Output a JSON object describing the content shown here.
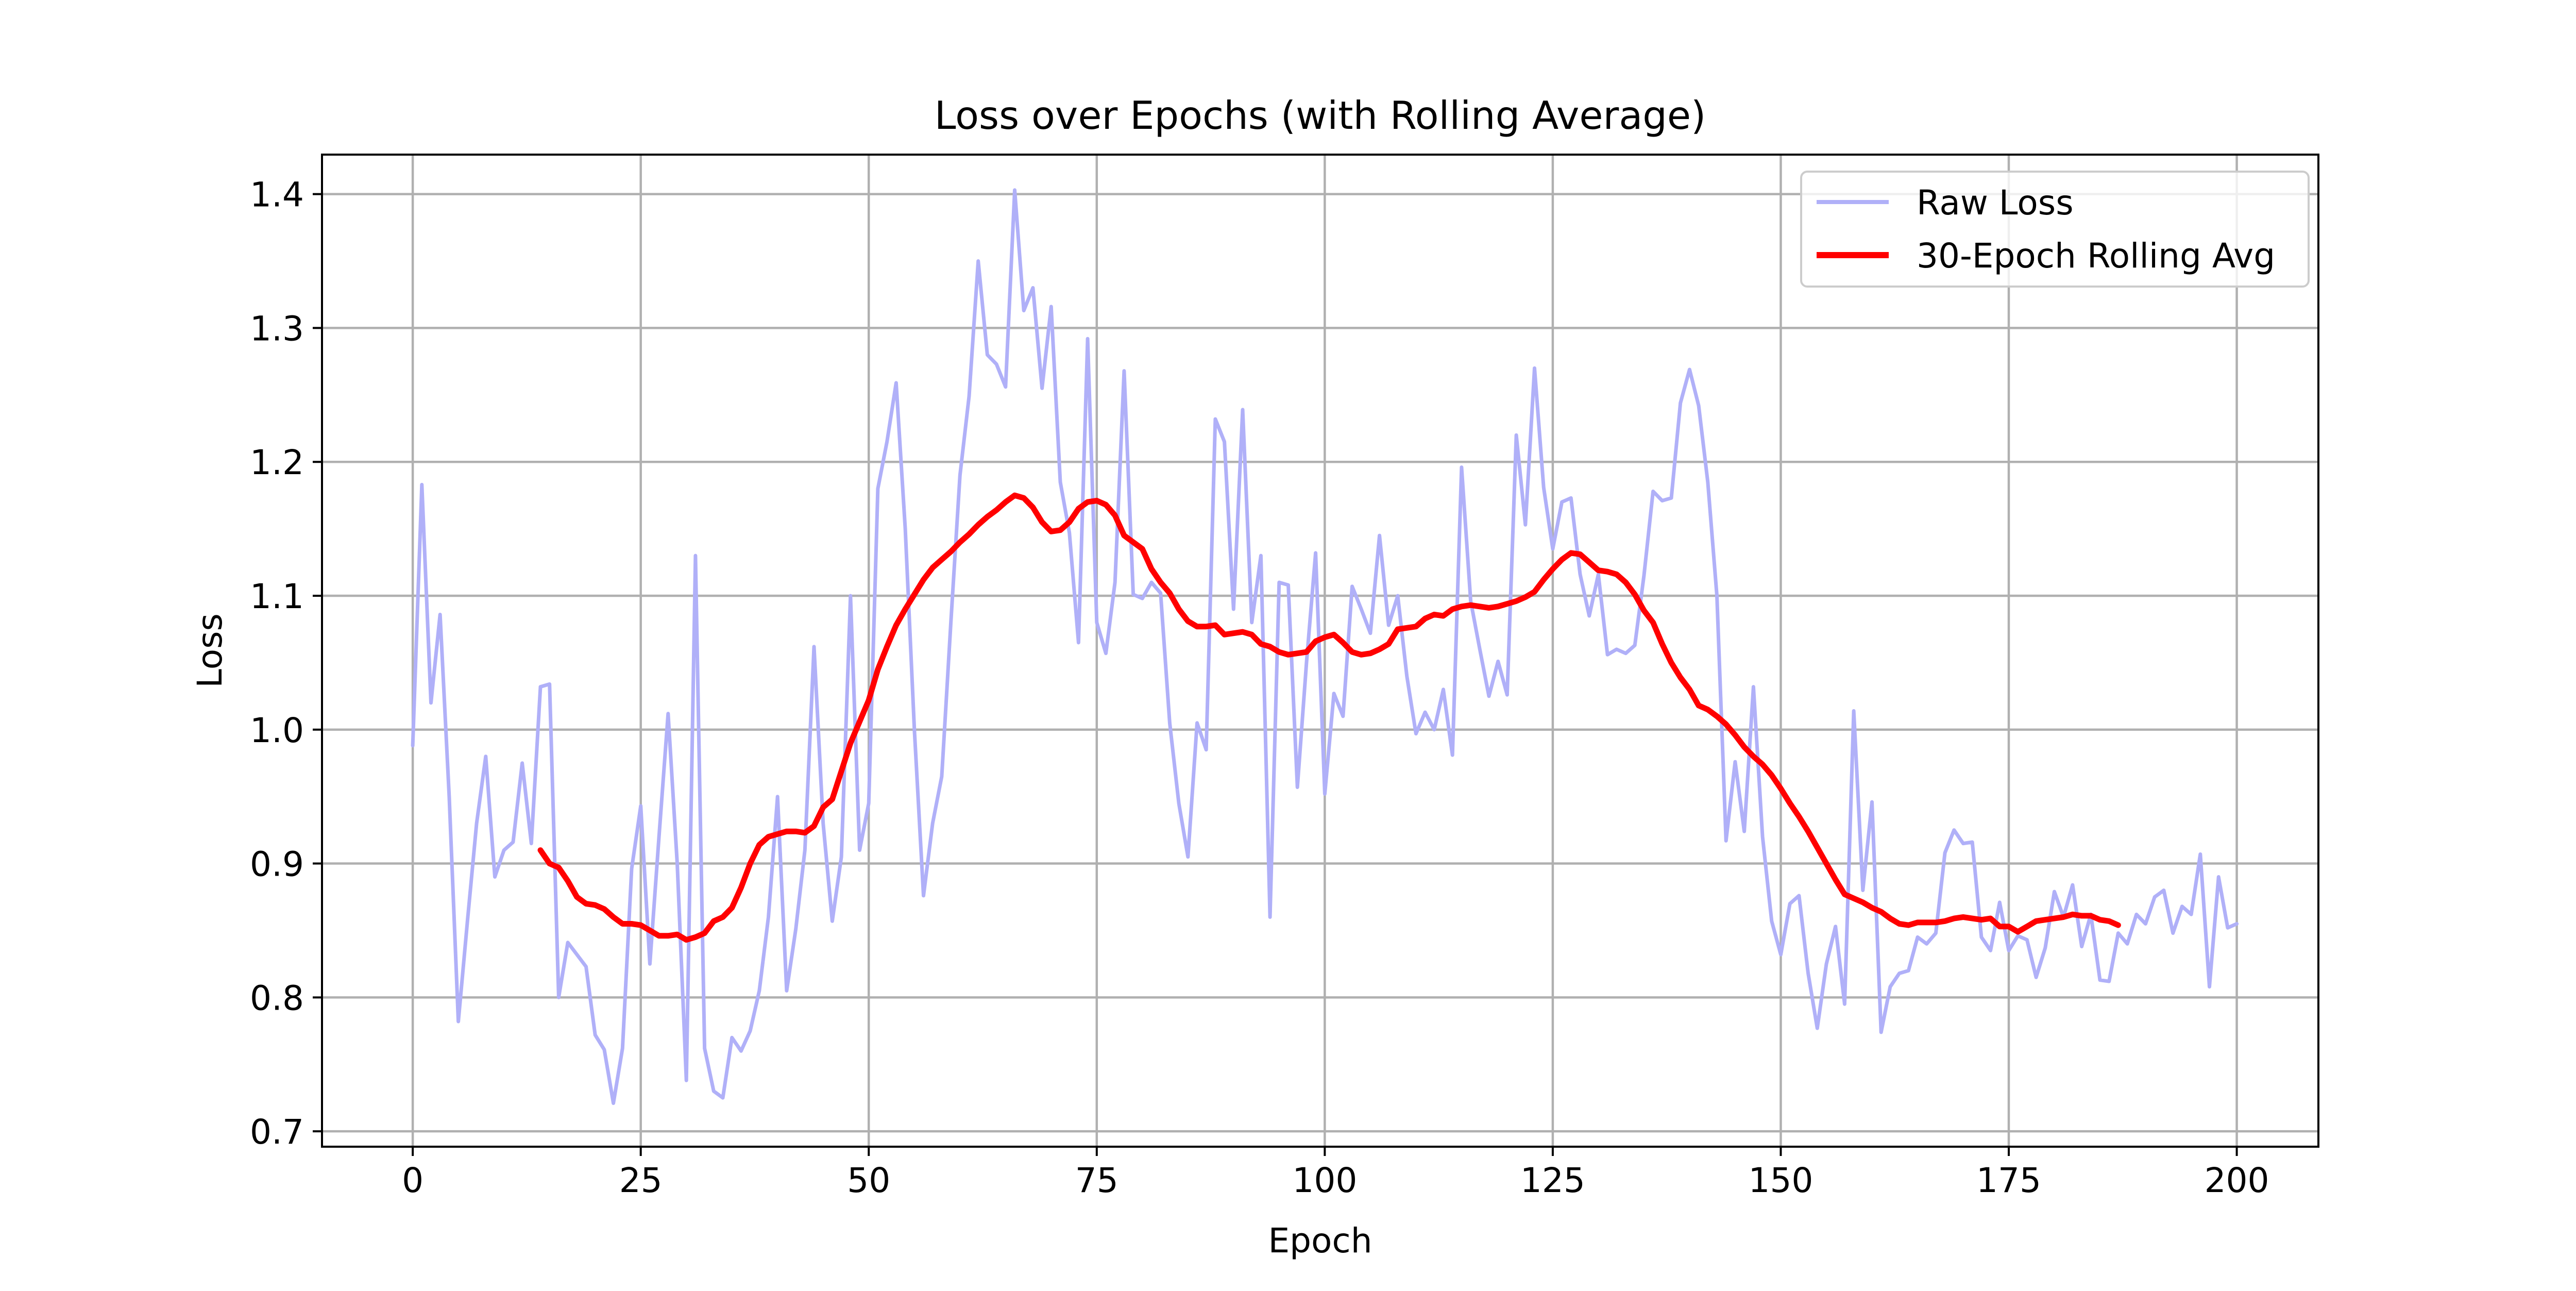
{
  "chart_data": {
    "type": "line",
    "title": "Loss over Epochs (with Rolling Average)",
    "xlabel": "Epoch",
    "ylabel": "Loss",
    "xlim": [
      -9.95,
      208.95
    ],
    "ylim": [
      0.6885,
      1.4295
    ],
    "xticks": [
      0,
      25,
      50,
      75,
      100,
      125,
      150,
      175,
      200
    ],
    "xtick_labels": [
      "0",
      "25",
      "50",
      "75",
      "100",
      "125",
      "150",
      "175",
      "200"
    ],
    "yticks": [
      0.7,
      0.8,
      0.9,
      1.0,
      1.1,
      1.2,
      1.3,
      1.4
    ],
    "ytick_labels": [
      "0.7",
      "0.8",
      "0.9",
      "1.0",
      "1.1",
      "1.2",
      "1.3",
      "1.4"
    ],
    "grid": true,
    "legend_position": "top-right",
    "series": [
      {
        "name": "Raw Loss",
        "color": "#b0b0f8",
        "x_start": 0,
        "values": [
          0.988,
          1.183,
          1.02,
          1.086,
          0.95,
          0.782,
          0.857,
          0.93,
          0.98,
          0.89,
          0.91,
          0.916,
          0.975,
          0.915,
          1.032,
          1.034,
          0.8,
          0.841,
          0.832,
          0.823,
          0.772,
          0.761,
          0.721,
          0.762,
          0.896,
          0.943,
          0.825,
          0.92,
          1.012,
          0.9,
          0.738,
          1.13,
          0.762,
          0.73,
          0.725,
          0.77,
          0.76,
          0.775,
          0.805,
          0.86,
          0.95,
          0.805,
          0.851,
          0.91,
          1.062,
          0.93,
          0.857,
          0.905,
          1.1,
          0.91,
          0.945,
          1.18,
          1.215,
          1.259,
          1.15,
          1.0,
          0.876,
          0.93,
          0.965,
          1.08,
          1.19,
          1.249,
          1.35,
          1.28,
          1.273,
          1.256,
          1.403,
          1.313,
          1.33,
          1.255,
          1.316,
          1.185,
          1.147,
          1.065,
          1.292,
          1.08,
          1.057,
          1.11,
          1.268,
          1.101,
          1.098,
          1.11,
          1.102,
          1.005,
          0.945,
          0.905,
          1.005,
          0.985,
          1.232,
          1.215,
          1.09,
          1.239,
          1.08,
          1.13,
          0.86,
          1.11,
          1.108,
          0.957,
          1.05,
          1.132,
          0.952,
          1.027,
          1.01,
          1.107,
          1.09,
          1.072,
          1.145,
          1.078,
          1.1,
          1.04,
          0.997,
          1.013,
          1.0,
          1.03,
          0.981,
          1.196,
          1.096,
          1.06,
          1.025,
          1.051,
          1.026,
          1.22,
          1.153,
          1.27,
          1.181,
          1.135,
          1.17,
          1.173,
          1.116,
          1.085,
          1.116,
          1.056,
          1.06,
          1.057,
          1.063,
          1.115,
          1.178,
          1.171,
          1.173,
          1.244,
          1.269,
          1.242,
          1.185,
          1.1,
          0.917,
          0.976,
          0.924,
          1.032,
          0.92,
          0.857,
          0.832,
          0.87,
          0.876,
          0.818,
          0.777,
          0.825,
          0.853,
          0.795,
          1.014,
          0.88,
          0.946,
          0.774,
          0.808,
          0.818,
          0.82,
          0.845,
          0.84,
          0.848,
          0.908,
          0.925,
          0.915,
          0.916,
          0.845,
          0.835,
          0.871,
          0.835,
          0.846,
          0.843,
          0.815,
          0.837,
          0.879,
          0.86,
          0.884,
          0.838,
          0.862,
          0.813,
          0.812,
          0.848,
          0.84,
          0.862,
          0.855,
          0.875,
          0.88,
          0.848,
          0.868,
          0.862,
          0.907,
          0.808,
          0.89,
          0.852,
          0.855
        ]
      },
      {
        "name": "30-Epoch Rolling Avg",
        "color": "#ff0000",
        "x_start": 14,
        "values": [
          0.91,
          0.9,
          0.897,
          0.887,
          0.875,
          0.87,
          0.869,
          0.866,
          0.86,
          0.855,
          0.855,
          0.854,
          0.85,
          0.846,
          0.846,
          0.847,
          0.843,
          0.845,
          0.848,
          0.857,
          0.86,
          0.867,
          0.882,
          0.9,
          0.914,
          0.92,
          0.922,
          0.924,
          0.924,
          0.923,
          0.928,
          0.942,
          0.948,
          0.969,
          0.99,
          1.006,
          1.022,
          1.045,
          1.062,
          1.078,
          1.09,
          1.101,
          1.112,
          1.121,
          1.127,
          1.133,
          1.14,
          1.146,
          1.153,
          1.159,
          1.164,
          1.17,
          1.175,
          1.173,
          1.166,
          1.155,
          1.148,
          1.149,
          1.155,
          1.165,
          1.17,
          1.171,
          1.168,
          1.16,
          1.145,
          1.14,
          1.135,
          1.12,
          1.11,
          1.102,
          1.09,
          1.081,
          1.077,
          1.077,
          1.078,
          1.071,
          1.072,
          1.073,
          1.071,
          1.064,
          1.062,
          1.058,
          1.056,
          1.057,
          1.058,
          1.066,
          1.069,
          1.071,
          1.065,
          1.058,
          1.056,
          1.057,
          1.06,
          1.064,
          1.075,
          1.076,
          1.077,
          1.083,
          1.086,
          1.085,
          1.09,
          1.092,
          1.093,
          1.092,
          1.091,
          1.092,
          1.094,
          1.096,
          1.099,
          1.103,
          1.112,
          1.12,
          1.127,
          1.132,
          1.131,
          1.125,
          1.119,
          1.118,
          1.116,
          1.11,
          1.101,
          1.089,
          1.08,
          1.064,
          1.05,
          1.039,
          1.03,
          1.018,
          1.015,
          1.01,
          1.004,
          0.996,
          0.987,
          0.98,
          0.974,
          0.966,
          0.956,
          0.945,
          0.935,
          0.924,
          0.912,
          0.9,
          0.888,
          0.877,
          0.874,
          0.871,
          0.867,
          0.864,
          0.859,
          0.855,
          0.854,
          0.856,
          0.856,
          0.856,
          0.857,
          0.859,
          0.86,
          0.859,
          0.858,
          0.859,
          0.853,
          0.853,
          0.849,
          0.853,
          0.857,
          0.858,
          0.859,
          0.86,
          0.862,
          0.861,
          0.861,
          0.858,
          0.857,
          0.854
        ]
      }
    ]
  }
}
